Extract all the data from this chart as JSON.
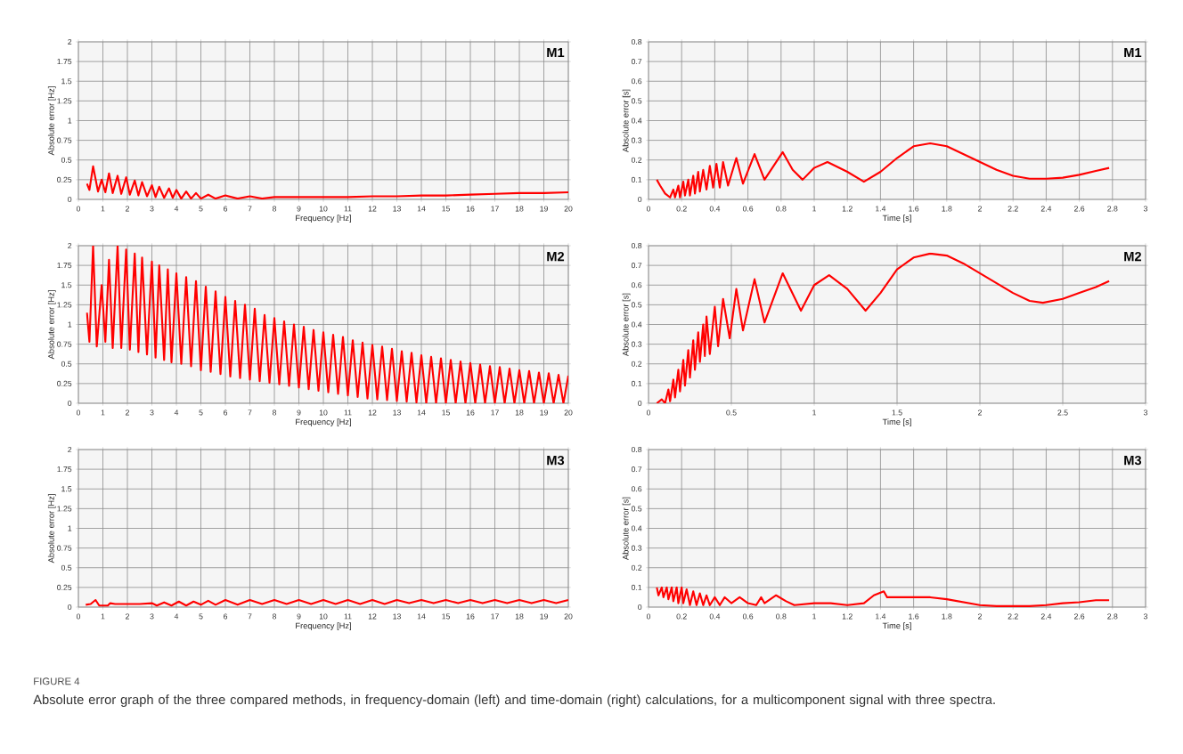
{
  "chart_data": [
    {
      "type": "line",
      "annotations": [
        "M1"
      ],
      "xlabel": "Frequency [Hz]",
      "ylabel": "Absolute error [Hz]",
      "xlim": [
        0,
        20
      ],
      "ylim": [
        0,
        2
      ],
      "xticks": [
        0,
        1,
        2,
        3,
        4,
        5,
        6,
        7,
        8,
        9,
        10,
        11,
        12,
        13,
        14,
        15,
        16,
        17,
        18,
        19,
        20
      ],
      "yticks": [
        0,
        0.25,
        0.5,
        0.75,
        1,
        1.25,
        1.5,
        1.75,
        2
      ],
      "grid": true,
      "series": [
        {
          "color": "#ff0000",
          "x": [
            0.35,
            0.45,
            0.6,
            0.8,
            0.95,
            1.1,
            1.25,
            1.4,
            1.6,
            1.75,
            1.95,
            2.1,
            2.3,
            2.45,
            2.6,
            2.8,
            3.0,
            3.15,
            3.3,
            3.5,
            3.7,
            3.85,
            4.0,
            4.2,
            4.4,
            4.6,
            4.8,
            5.0,
            5.3,
            5.6,
            6,
            6.5,
            7,
            7.5,
            8,
            9,
            10,
            11,
            12,
            13,
            14,
            15,
            16,
            17,
            18,
            19,
            20
          ],
          "values": [
            0.2,
            0.12,
            0.42,
            0.1,
            0.25,
            0.09,
            0.33,
            0.08,
            0.3,
            0.07,
            0.28,
            0.06,
            0.24,
            0.05,
            0.22,
            0.04,
            0.18,
            0.03,
            0.16,
            0.02,
            0.14,
            0.02,
            0.12,
            0.01,
            0.1,
            0.01,
            0.08,
            0.01,
            0.06,
            0.01,
            0.05,
            0.01,
            0.04,
            0.01,
            0.03,
            0.03,
            0.03,
            0.03,
            0.04,
            0.04,
            0.05,
            0.05,
            0.06,
            0.07,
            0.08,
            0.08,
            0.09
          ]
        }
      ]
    },
    {
      "type": "line",
      "annotations": [
        "M1"
      ],
      "xlabel": "Time [s]",
      "ylabel": "Absolute error [s]",
      "xlim": [
        0,
        3
      ],
      "ylim": [
        0,
        0.8
      ],
      "xticks": [
        0,
        0.2,
        0.4,
        0.6,
        0.8,
        1,
        1.2,
        1.4,
        1.6,
        1.8,
        2,
        2.2,
        2.4,
        2.6,
        2.8,
        3
      ],
      "yticks": [
        0,
        0.1,
        0.2,
        0.3,
        0.4,
        0.5,
        0.6,
        0.7,
        0.8
      ],
      "grid": true,
      "series": [
        {
          "color": "#ff0000",
          "x": [
            0.05,
            0.07,
            0.1,
            0.13,
            0.15,
            0.16,
            0.18,
            0.19,
            0.21,
            0.22,
            0.24,
            0.25,
            0.27,
            0.28,
            0.3,
            0.31,
            0.33,
            0.35,
            0.37,
            0.39,
            0.41,
            0.43,
            0.45,
            0.48,
            0.53,
            0.57,
            0.64,
            0.7,
            0.81,
            0.87,
            0.93,
            1.0,
            1.08,
            1.2,
            1.3,
            1.4,
            1.5,
            1.6,
            1.7,
            1.8,
            1.9,
            2.0,
            2.1,
            2.2,
            2.3,
            2.4,
            2.5,
            2.6,
            2.7,
            2.78
          ],
          "values": [
            0.1,
            0.07,
            0.03,
            0.01,
            0.05,
            0.01,
            0.07,
            0.01,
            0.09,
            0.02,
            0.1,
            0.02,
            0.12,
            0.03,
            0.14,
            0.04,
            0.15,
            0.05,
            0.17,
            0.06,
            0.18,
            0.06,
            0.19,
            0.07,
            0.21,
            0.08,
            0.23,
            0.1,
            0.24,
            0.15,
            0.1,
            0.16,
            0.19,
            0.14,
            0.09,
            0.14,
            0.21,
            0.27,
            0.285,
            0.27,
            0.23,
            0.19,
            0.15,
            0.12,
            0.105,
            0.105,
            0.11,
            0.125,
            0.145,
            0.16
          ]
        }
      ]
    },
    {
      "type": "line",
      "annotations": [
        "M2"
      ],
      "xlabel": "Frequency [Hz]",
      "ylabel": "Absolute error [Hz]",
      "xlim": [
        0,
        20
      ],
      "ylim": [
        0,
        2
      ],
      "xticks": [
        0,
        1,
        2,
        3,
        4,
        5,
        6,
        7,
        8,
        9,
        10,
        11,
        12,
        13,
        14,
        15,
        16,
        17,
        18,
        19,
        20
      ],
      "yticks": [
        0,
        0.25,
        0.5,
        0.75,
        1,
        1.25,
        1.5,
        1.75,
        2
      ],
      "grid": true,
      "series": [
        {
          "color": "#ff0000",
          "x": [
            0.35,
            0.45,
            0.6,
            0.75,
            0.95,
            1.1,
            1.25,
            1.4,
            1.6,
            1.75,
            1.95,
            2.1,
            2.3,
            2.45,
            2.6,
            2.8,
            3.0,
            3.15,
            3.3,
            3.5,
            3.65,
            3.8,
            4.0,
            4.2,
            4.4,
            4.6,
            4.8,
            5.0,
            5.2,
            5.4,
            5.6,
            5.8,
            6.0,
            6.2,
            6.4,
            6.6,
            6.8,
            7.0,
            7.2,
            7.4,
            7.6,
            7.8,
            8.0,
            8.2,
            8.4,
            8.6,
            8.8,
            9.0,
            9.2,
            9.4,
            9.6,
            9.8,
            10.0,
            10.2,
            10.4,
            10.6,
            10.8,
            11.0,
            11.2,
            11.4,
            11.6,
            11.8,
            12.0,
            12.2,
            12.4,
            12.6,
            12.8,
            13.0,
            13.2,
            13.4,
            13.6,
            13.8,
            14.0,
            14.2,
            14.4,
            14.6,
            14.8,
            15.0,
            15.2,
            15.4,
            15.6,
            15.8,
            16.0,
            16.2,
            16.4,
            16.6,
            16.8,
            17.0,
            17.2,
            17.4,
            17.6,
            17.8,
            18.0,
            18.2,
            18.4,
            18.6,
            18.8,
            19.0,
            19.2,
            19.4,
            19.6,
            19.8,
            20.0
          ],
          "values": [
            1.15,
            0.78,
            2.0,
            0.72,
            1.5,
            0.78,
            1.82,
            0.7,
            2.0,
            0.7,
            1.95,
            0.68,
            1.9,
            0.65,
            1.85,
            0.62,
            1.8,
            0.58,
            1.75,
            0.55,
            1.7,
            0.52,
            1.65,
            0.5,
            1.6,
            0.47,
            1.55,
            0.42,
            1.48,
            0.4,
            1.42,
            0.37,
            1.35,
            0.34,
            1.3,
            0.32,
            1.25,
            0.3,
            1.2,
            0.28,
            1.12,
            0.26,
            1.08,
            0.24,
            1.04,
            0.22,
            1.0,
            0.2,
            0.97,
            0.18,
            0.93,
            0.16,
            0.9,
            0.14,
            0.87,
            0.12,
            0.84,
            0.1,
            0.8,
            0.08,
            0.77,
            0.06,
            0.74,
            0.05,
            0.72,
            0.04,
            0.69,
            0.03,
            0.66,
            0.02,
            0.64,
            0.01,
            0.61,
            0,
            0.59,
            0,
            0.57,
            0,
            0.55,
            0,
            0.53,
            0,
            0.51,
            0,
            0.49,
            0,
            0.47,
            0,
            0.46,
            0,
            0.44,
            0,
            0.42,
            0,
            0.41,
            0,
            0.39,
            0,
            0.38,
            0,
            0.36,
            0,
            0.35
          ]
        }
      ]
    },
    {
      "type": "line",
      "annotations": [
        "M2"
      ],
      "xlabel": "Time [s]",
      "ylabel": "Absolute error [s]",
      "xlim": [
        0,
        3
      ],
      "ylim": [
        0,
        0.8
      ],
      "xticks": [
        0,
        0.5,
        1,
        1.5,
        2,
        2.5,
        3
      ],
      "yticks": [
        0,
        0.1,
        0.2,
        0.3,
        0.4,
        0.5,
        0.6,
        0.7,
        0.8
      ],
      "grid": true,
      "series": [
        {
          "color": "#ff0000",
          "x": [
            0.05,
            0.08,
            0.1,
            0.12,
            0.13,
            0.15,
            0.16,
            0.18,
            0.19,
            0.21,
            0.22,
            0.24,
            0.25,
            0.27,
            0.28,
            0.3,
            0.31,
            0.33,
            0.34,
            0.35,
            0.37,
            0.4,
            0.42,
            0.45,
            0.49,
            0.53,
            0.57,
            0.64,
            0.7,
            0.81,
            0.92,
            1.0,
            1.09,
            1.2,
            1.31,
            1.4,
            1.5,
            1.6,
            1.7,
            1.8,
            1.9,
            2.0,
            2.1,
            2.2,
            2.3,
            2.38,
            2.5,
            2.6,
            2.7,
            2.78
          ],
          "values": [
            0.0,
            0.02,
            0.0,
            0.07,
            0.01,
            0.12,
            0.03,
            0.17,
            0.06,
            0.22,
            0.09,
            0.27,
            0.13,
            0.32,
            0.17,
            0.36,
            0.21,
            0.4,
            0.24,
            0.44,
            0.25,
            0.49,
            0.29,
            0.53,
            0.33,
            0.58,
            0.37,
            0.63,
            0.41,
            0.66,
            0.47,
            0.6,
            0.65,
            0.58,
            0.47,
            0.56,
            0.68,
            0.74,
            0.76,
            0.75,
            0.71,
            0.66,
            0.61,
            0.56,
            0.52,
            0.51,
            0.53,
            0.56,
            0.59,
            0.62
          ]
        }
      ]
    },
    {
      "type": "line",
      "annotations": [
        "M3"
      ],
      "xlabel": "Frequency [Hz]",
      "ylabel": "Absolute error [Hz]",
      "xlim": [
        0,
        20
      ],
      "ylim": [
        0,
        2
      ],
      "xticks": [
        0,
        1,
        2,
        3,
        4,
        5,
        6,
        7,
        8,
        9,
        10,
        11,
        12,
        13,
        14,
        15,
        16,
        17,
        18,
        19,
        20
      ],
      "yticks": [
        0,
        0.25,
        0.5,
        0.75,
        1,
        1.25,
        1.5,
        1.75,
        2
      ],
      "grid": true,
      "series": [
        {
          "color": "#ff0000",
          "x": [
            0.3,
            0.5,
            0.7,
            0.85,
            1.2,
            1.3,
            1.5,
            2,
            2.5,
            3,
            3.2,
            3.5,
            3.8,
            4.1,
            4.4,
            4.7,
            5.0,
            5.3,
            5.6,
            6.0,
            6.5,
            7.0,
            7.5,
            8.0,
            8.5,
            9,
            9.5,
            10,
            10.5,
            11,
            11.5,
            12,
            12.5,
            13,
            13.5,
            14,
            14.5,
            15,
            15.5,
            16,
            16.5,
            17,
            17.5,
            18,
            18.5,
            19,
            19.5,
            20
          ],
          "values": [
            0.03,
            0.04,
            0.09,
            0.02,
            0.02,
            0.05,
            0.04,
            0.04,
            0.04,
            0.05,
            0.02,
            0.06,
            0.02,
            0.07,
            0.02,
            0.07,
            0.03,
            0.08,
            0.03,
            0.09,
            0.03,
            0.09,
            0.04,
            0.09,
            0.04,
            0.09,
            0.04,
            0.09,
            0.04,
            0.09,
            0.04,
            0.09,
            0.04,
            0.09,
            0.05,
            0.09,
            0.05,
            0.09,
            0.05,
            0.09,
            0.05,
            0.09,
            0.05,
            0.09,
            0.05,
            0.09,
            0.05,
            0.09
          ]
        }
      ]
    },
    {
      "type": "line",
      "annotations": [
        "M3"
      ],
      "xlabel": "Time [s]",
      "ylabel": "Absolute error [s]",
      "xlim": [
        0,
        3
      ],
      "ylim": [
        0,
        0.8
      ],
      "xticks": [
        0,
        0.2,
        0.4,
        0.6,
        0.8,
        1,
        1.2,
        1.4,
        1.6,
        1.8,
        2,
        2.2,
        2.4,
        2.6,
        2.8,
        3
      ],
      "yticks": [
        0,
        0.1,
        0.2,
        0.3,
        0.4,
        0.5,
        0.6,
        0.7,
        0.8
      ],
      "grid": true,
      "series": [
        {
          "color": "#ff0000",
          "x": [
            0.05,
            0.06,
            0.08,
            0.09,
            0.11,
            0.12,
            0.14,
            0.15,
            0.17,
            0.18,
            0.2,
            0.21,
            0.23,
            0.25,
            0.27,
            0.29,
            0.31,
            0.33,
            0.35,
            0.37,
            0.4,
            0.43,
            0.46,
            0.5,
            0.55,
            0.6,
            0.65,
            0.68,
            0.7,
            0.77,
            0.83,
            0.88,
            1.0,
            1.1,
            1.2,
            1.3,
            1.36,
            1.42,
            1.44,
            1.5,
            1.6,
            1.7,
            1.8,
            1.9,
            2.0,
            2.1,
            2.2,
            2.3,
            2.4,
            2.5,
            2.6,
            2.7,
            2.78
          ],
          "values": [
            0.1,
            0.06,
            0.1,
            0.05,
            0.1,
            0.04,
            0.1,
            0.03,
            0.1,
            0.02,
            0.1,
            0.02,
            0.09,
            0.01,
            0.08,
            0.01,
            0.07,
            0.01,
            0.06,
            0.01,
            0.05,
            0.01,
            0.05,
            0.02,
            0.05,
            0.02,
            0.01,
            0.05,
            0.02,
            0.06,
            0.03,
            0.01,
            0.02,
            0.02,
            0.01,
            0.02,
            0.06,
            0.08,
            0.05,
            0.05,
            0.05,
            0.05,
            0.04,
            0.025,
            0.01,
            0.005,
            0.005,
            0.005,
            0.01,
            0.02,
            0.025,
            0.035,
            0.035
          ]
        }
      ]
    },
    {
      "type": "other",
      "title": "FIGURE 4",
      "annotations": [
        "Absolute error graph of the three compared methods, in frequency-domain (left) and time-domain (right) calculations, for a multicomponent signal with three spectra."
      ]
    }
  ]
}
